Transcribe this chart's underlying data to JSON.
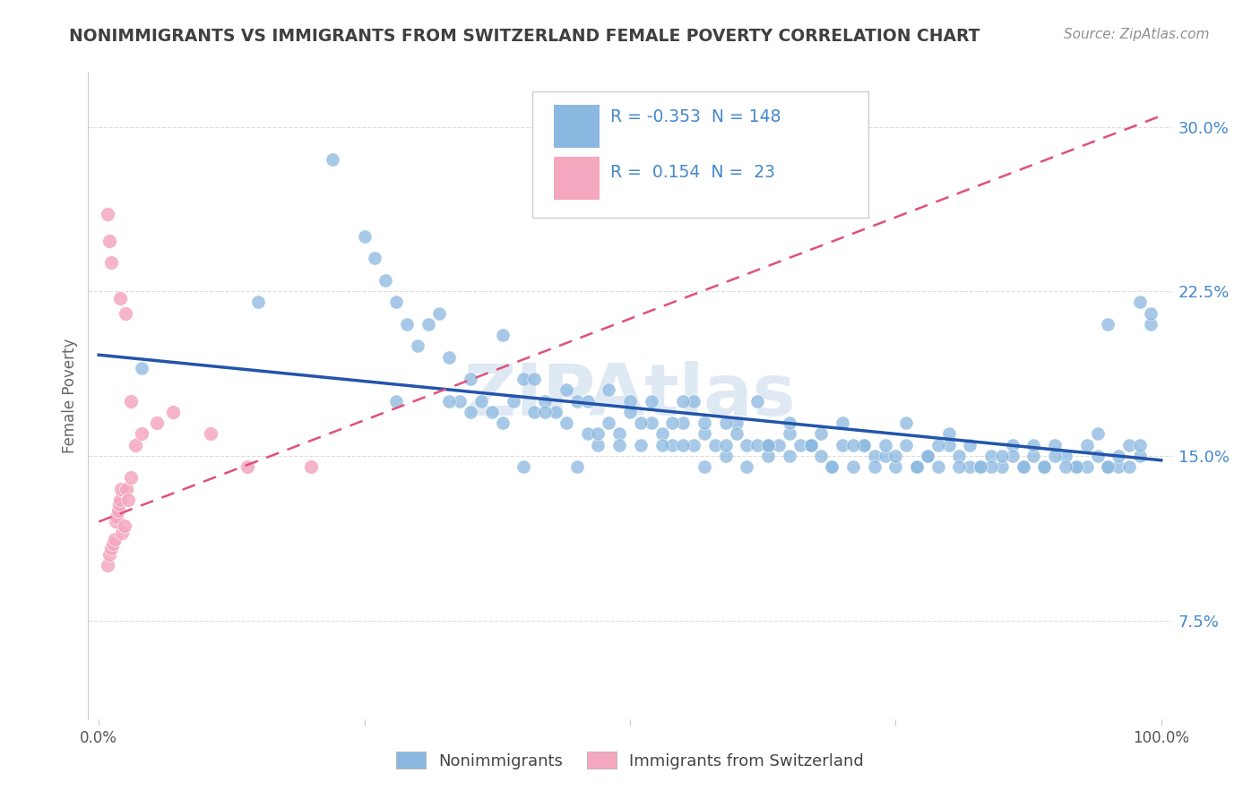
{
  "title": "NONIMMIGRANTS VS IMMIGRANTS FROM SWITZERLAND FEMALE POVERTY CORRELATION CHART",
  "source": "Source: ZipAtlas.com",
  "xlabel": "",
  "ylabel": "Female Poverty",
  "xlim": [
    -0.01,
    1.01
  ],
  "ylim": [
    0.03,
    0.325
  ],
  "ytick_positions": [
    0.075,
    0.15,
    0.225,
    0.3
  ],
  "ytick_labels": [
    "7.5%",
    "15.0%",
    "22.5%",
    "30.0%"
  ],
  "R_nonimm": -0.353,
  "N_nonimm": 148,
  "R_imm": 0.154,
  "N_imm": 23,
  "blue_color": "#8ab8e0",
  "pink_color": "#f4a7bf",
  "blue_line_color": "#2255aa",
  "pink_line_color": "#e0507a",
  "title_color": "#404040",
  "source_color": "#909090",
  "axis_label_color": "#666666",
  "legend_text_color": "#4488cc",
  "background_color": "#ffffff",
  "watermark_text": "ZIPAtlas",
  "grid_color": "#dddddd",
  "nonimm_x": [
    0.04,
    0.15,
    0.22,
    0.25,
    0.26,
    0.27,
    0.28,
    0.29,
    0.3,
    0.31,
    0.32,
    0.33,
    0.34,
    0.35,
    0.36,
    0.37,
    0.38,
    0.39,
    0.4,
    0.41,
    0.42,
    0.43,
    0.44,
    0.45,
    0.46,
    0.47,
    0.48,
    0.49,
    0.5,
    0.51,
    0.52,
    0.53,
    0.54,
    0.55,
    0.56,
    0.57,
    0.58,
    0.59,
    0.6,
    0.61,
    0.62,
    0.63,
    0.64,
    0.65,
    0.66,
    0.67,
    0.68,
    0.69,
    0.7,
    0.71,
    0.72,
    0.73,
    0.74,
    0.75,
    0.76,
    0.77,
    0.78,
    0.79,
    0.8,
    0.81,
    0.82,
    0.83,
    0.84,
    0.85,
    0.86,
    0.87,
    0.88,
    0.89,
    0.9,
    0.91,
    0.92,
    0.93,
    0.94,
    0.95,
    0.96,
    0.97,
    0.98,
    0.99,
    0.33,
    0.38,
    0.41,
    0.44,
    0.46,
    0.48,
    0.5,
    0.52,
    0.54,
    0.55,
    0.56,
    0.57,
    0.59,
    0.6,
    0.62,
    0.63,
    0.65,
    0.67,
    0.68,
    0.7,
    0.72,
    0.74,
    0.76,
    0.78,
    0.8,
    0.82,
    0.84,
    0.86,
    0.88,
    0.9,
    0.92,
    0.93,
    0.94,
    0.95,
    0.96,
    0.97,
    0.98,
    0.99,
    0.28,
    0.35,
    0.4,
    0.42,
    0.45,
    0.47,
    0.49,
    0.51,
    0.53,
    0.55,
    0.57,
    0.59,
    0.61,
    0.63,
    0.65,
    0.67,
    0.69,
    0.71,
    0.73,
    0.75,
    0.77,
    0.79,
    0.81,
    0.83,
    0.85,
    0.87,
    0.89,
    0.91,
    0.95,
    0.98
  ],
  "nonimm_y": [
    0.19,
    0.22,
    0.285,
    0.25,
    0.24,
    0.23,
    0.22,
    0.21,
    0.2,
    0.21,
    0.215,
    0.195,
    0.175,
    0.185,
    0.175,
    0.17,
    0.165,
    0.175,
    0.185,
    0.17,
    0.175,
    0.17,
    0.165,
    0.175,
    0.16,
    0.155,
    0.165,
    0.16,
    0.175,
    0.155,
    0.165,
    0.16,
    0.155,
    0.165,
    0.155,
    0.16,
    0.155,
    0.15,
    0.165,
    0.155,
    0.155,
    0.15,
    0.155,
    0.16,
    0.155,
    0.155,
    0.15,
    0.145,
    0.155,
    0.145,
    0.155,
    0.15,
    0.15,
    0.145,
    0.155,
    0.145,
    0.15,
    0.145,
    0.16,
    0.15,
    0.145,
    0.145,
    0.15,
    0.145,
    0.155,
    0.145,
    0.15,
    0.145,
    0.155,
    0.15,
    0.145,
    0.145,
    0.15,
    0.145,
    0.145,
    0.145,
    0.15,
    0.21,
    0.175,
    0.205,
    0.185,
    0.18,
    0.175,
    0.18,
    0.17,
    0.175,
    0.165,
    0.155,
    0.175,
    0.165,
    0.165,
    0.16,
    0.175,
    0.155,
    0.165,
    0.155,
    0.16,
    0.165,
    0.155,
    0.155,
    0.165,
    0.15,
    0.155,
    0.155,
    0.145,
    0.15,
    0.155,
    0.15,
    0.145,
    0.155,
    0.16,
    0.145,
    0.15,
    0.155,
    0.155,
    0.215,
    0.175,
    0.17,
    0.145,
    0.17,
    0.145,
    0.16,
    0.155,
    0.165,
    0.155,
    0.175,
    0.145,
    0.155,
    0.145,
    0.155,
    0.15,
    0.155,
    0.145,
    0.155,
    0.145,
    0.15,
    0.145,
    0.155,
    0.145,
    0.145,
    0.15,
    0.145,
    0.145,
    0.145,
    0.21,
    0.22
  ],
  "imm_x": [
    0.008,
    0.01,
    0.012,
    0.013,
    0.015,
    0.016,
    0.017,
    0.018,
    0.019,
    0.02,
    0.021,
    0.022,
    0.024,
    0.026,
    0.028,
    0.03,
    0.034,
    0.04,
    0.055,
    0.07,
    0.105,
    0.14,
    0.2
  ],
  "imm_y": [
    0.1,
    0.105,
    0.108,
    0.11,
    0.112,
    0.12,
    0.122,
    0.125,
    0.128,
    0.13,
    0.135,
    0.115,
    0.118,
    0.135,
    0.13,
    0.14,
    0.155,
    0.16,
    0.165,
    0.17,
    0.16,
    0.145,
    0.145
  ],
  "imm_outliers_x": [
    0.008,
    0.01,
    0.012,
    0.02,
    0.025,
    0.03
  ],
  "imm_outliers_y": [
    0.26,
    0.248,
    0.238,
    0.222,
    0.215,
    0.175
  ]
}
